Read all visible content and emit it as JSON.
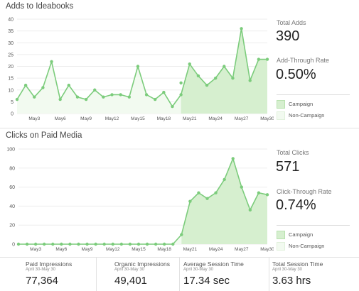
{
  "colors": {
    "line": "#7ccc7c",
    "marker": "#7ccc7c",
    "campaign_fill": "#d6efcf",
    "noncampaign_fill": "#f2faf0",
    "grid": "#ededed",
    "axis_text": "#555555"
  },
  "chart_data": [
    {
      "type": "area",
      "title": "Adds to Ideabooks",
      "xlabel": "",
      "ylabel": "",
      "ylim": [
        0,
        40
      ],
      "yticks": [
        0,
        5,
        10,
        15,
        20,
        25,
        30,
        35,
        40
      ],
      "grid": true,
      "x": [
        "May1",
        "May2",
        "May3",
        "May4",
        "May5",
        "May6",
        "May7",
        "May8",
        "May9",
        "May10",
        "May11",
        "May12",
        "May13",
        "May14",
        "May15",
        "May16",
        "May17",
        "May18",
        "May19",
        "May20",
        "May21",
        "May22",
        "May23",
        "May24",
        "May25",
        "May26",
        "May27",
        "May28",
        "May29",
        "May30"
      ],
      "xtick_labels": [
        "May3",
        "May6",
        "May9",
        "May12",
        "May15",
        "May18",
        "May21",
        "May24",
        "May27",
        "May30"
      ],
      "values": [
        6,
        12,
        7,
        11,
        22,
        6,
        12,
        7,
        6,
        10,
        7,
        8,
        8,
        7,
        20,
        8,
        6,
        9,
        3,
        8,
        21,
        16,
        12,
        15,
        20,
        15,
        36,
        14,
        23,
        23
      ],
      "overlay_values": [
        null,
        null,
        null,
        null,
        null,
        null,
        null,
        null,
        null,
        null,
        null,
        null,
        null,
        null,
        null,
        null,
        null,
        null,
        null,
        13,
        null,
        null,
        null,
        null,
        null,
        null,
        null,
        null,
        null,
        null
      ],
      "campaign_start": "May20",
      "legend": [
        "Campaign",
        "Non-Campaign"
      ],
      "stats": {
        "total_label": "Total Adds",
        "total_value": "390",
        "rate_label": "Add-Through Rate",
        "rate_value": "0.50%"
      }
    },
    {
      "type": "area",
      "title": "Clicks on Paid Media",
      "xlabel": "",
      "ylabel": "",
      "ylim": [
        0,
        100
      ],
      "yticks": [
        0,
        20,
        40,
        60,
        80,
        100
      ],
      "grid": true,
      "x": [
        "May1",
        "May2",
        "May3",
        "May4",
        "May5",
        "May6",
        "May7",
        "May8",
        "May9",
        "May10",
        "May11",
        "May12",
        "May13",
        "May14",
        "May15",
        "May16",
        "May17",
        "May18",
        "May19",
        "May20",
        "May21",
        "May22",
        "May23",
        "May24",
        "May25",
        "May26",
        "May27",
        "May28",
        "May29",
        "May30"
      ],
      "xtick_labels": [
        "May3",
        "May6",
        "May9",
        "May12",
        "May15",
        "May18",
        "May21",
        "May24",
        "May27",
        "May30"
      ],
      "values": [
        0,
        0,
        0,
        0,
        0,
        0,
        0,
        0,
        0,
        0,
        0,
        0,
        0,
        0,
        0,
        0,
        0,
        0,
        0,
        10,
        45,
        54,
        48,
        54,
        68,
        90,
        60,
        36,
        54,
        52
      ],
      "campaign_start": "May20",
      "legend": [
        "Campaign",
        "Non-Campaign"
      ],
      "stats": {
        "total_label": "Total Clicks",
        "total_value": "571",
        "rate_label": "Click-Through Rate",
        "rate_value": "0.74%"
      }
    }
  ],
  "bottom_stats": [
    {
      "label": "Paid Impressions",
      "sub": "April 30-May 30",
      "value": "77,364"
    },
    {
      "label": "Organic Impressions",
      "sub": "April 30-May 30",
      "value": "49,401"
    },
    {
      "label": "Average Session Time",
      "sub": "April 30-May 30",
      "value": "17.34 sec"
    },
    {
      "label": "Total Session Time",
      "sub": "April 30-May 30",
      "value": "3.63 hrs"
    }
  ]
}
